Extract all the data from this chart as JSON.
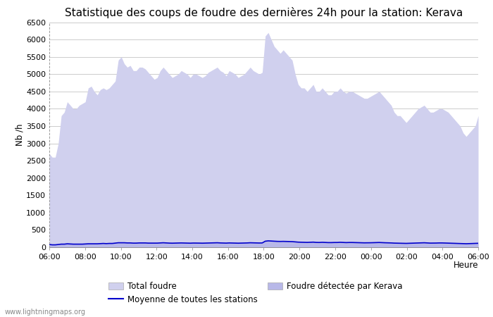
{
  "title": "Statistique des coups de foudre des dernières 24h pour la station: Kerava",
  "ylabel": "Nb /h",
  "xlabel": "Heure",
  "watermark": "www.lightningmaps.org",
  "xtick_labels": [
    "06:00",
    "08:00",
    "10:00",
    "12:00",
    "14:00",
    "16:00",
    "18:00",
    "20:00",
    "22:00",
    "00:00",
    "02:00",
    "04:00",
    "06:00"
  ],
  "ylim": [
    0,
    6500
  ],
  "ytick_values": [
    0,
    500,
    1000,
    1500,
    2000,
    2500,
    3000,
    3500,
    4000,
    4500,
    5000,
    5500,
    6000,
    6500
  ],
  "grid_color": "#cccccc",
  "fill_total_color": "#d0d0ee",
  "fill_kerava_color": "#b8b8e8",
  "line_color": "#0000cc",
  "total_foudre": [
    2700,
    2600,
    2600,
    3000,
    3800,
    3900,
    4200,
    4100,
    4000,
    4000,
    4100,
    4150,
    4200,
    4600,
    4650,
    4500,
    4400,
    4550,
    4600,
    4550,
    4600,
    4700,
    4800,
    5400,
    5500,
    5300,
    5200,
    5250,
    5100,
    5100,
    5200,
    5200,
    5150,
    5050,
    4950,
    4850,
    4900,
    5100,
    5200,
    5100,
    5000,
    4900,
    4950,
    5000,
    5100,
    5050,
    5000,
    4900,
    5000,
    5000,
    4950,
    4900,
    4950,
    5050,
    5100,
    5150,
    5200,
    5100,
    5050,
    4950,
    5100,
    5050,
    5000,
    4900,
    4950,
    5000,
    5100,
    5200,
    5100,
    5050,
    5000,
    5050,
    6100,
    6200,
    6000,
    5800,
    5700,
    5600,
    5700,
    5600,
    5500,
    5400,
    5000,
    4700,
    4600,
    4600,
    4500,
    4600,
    4700,
    4500,
    4500,
    4600,
    4500,
    4400,
    4400,
    4500,
    4500,
    4600,
    4500,
    4450,
    4500,
    4500,
    4450,
    4400,
    4350,
    4300,
    4300,
    4350,
    4400,
    4450,
    4500,
    4400,
    4300,
    4200,
    4100,
    3900,
    3800,
    3800,
    3700,
    3600,
    3700,
    3800,
    3900,
    4000,
    4050,
    4100,
    4000,
    3900,
    3900,
    3950,
    4000,
    4000,
    3950,
    3900,
    3800,
    3700,
    3600,
    3500,
    3300,
    3200,
    3300,
    3400,
    3500,
    3800
  ],
  "kerava_foudre": [
    80,
    70,
    70,
    80,
    90,
    90,
    100,
    95,
    90,
    90,
    90,
    90,
    95,
    100,
    100,
    100,
    100,
    105,
    110,
    105,
    110,
    110,
    120,
    130,
    130,
    130,
    125,
    125,
    120,
    120,
    125,
    125,
    125,
    120,
    120,
    118,
    120,
    125,
    130,
    125,
    120,
    118,
    120,
    122,
    125,
    123,
    120,
    118,
    122,
    122,
    120,
    118,
    120,
    123,
    125,
    128,
    130,
    125,
    123,
    120,
    125,
    123,
    120,
    118,
    120,
    122,
    125,
    130,
    128,
    125,
    123,
    125,
    175,
    185,
    180,
    175,
    170,
    168,
    170,
    168,
    165,
    163,
    155,
    148,
    145,
    143,
    140,
    143,
    148,
    140,
    138,
    143,
    138,
    135,
    135,
    138,
    138,
    143,
    138,
    135,
    138,
    138,
    135,
    133,
    130,
    128,
    128,
    130,
    133,
    135,
    138,
    133,
    130,
    128,
    125,
    120,
    118,
    118,
    115,
    112,
    115,
    118,
    120,
    125,
    128,
    130,
    125,
    120,
    120,
    122,
    125,
    125,
    122,
    120,
    115,
    113,
    110,
    108,
    105,
    102,
    105,
    108,
    110,
    115
  ],
  "moyenne_stations": [
    80,
    70,
    70,
    80,
    90,
    90,
    100,
    95,
    90,
    90,
    90,
    90,
    95,
    100,
    100,
    100,
    100,
    105,
    110,
    105,
    110,
    110,
    120,
    130,
    130,
    130,
    125,
    125,
    120,
    120,
    125,
    125,
    125,
    120,
    120,
    118,
    120,
    125,
    130,
    125,
    120,
    118,
    120,
    122,
    125,
    123,
    120,
    118,
    122,
    122,
    120,
    118,
    120,
    123,
    125,
    128,
    130,
    125,
    123,
    120,
    125,
    123,
    120,
    118,
    120,
    122,
    125,
    130,
    128,
    125,
    123,
    125,
    175,
    185,
    180,
    175,
    170,
    168,
    170,
    168,
    165,
    163,
    155,
    148,
    145,
    143,
    140,
    143,
    148,
    140,
    138,
    143,
    138,
    135,
    135,
    138,
    138,
    143,
    138,
    135,
    138,
    138,
    135,
    133,
    130,
    128,
    128,
    130,
    133,
    135,
    138,
    133,
    130,
    128,
    125,
    120,
    118,
    118,
    115,
    112,
    115,
    118,
    120,
    125,
    128,
    130,
    125,
    120,
    120,
    122,
    125,
    125,
    122,
    120,
    115,
    113,
    110,
    108,
    105,
    102,
    105,
    108,
    110,
    115
  ],
  "legend_total_label": "Total foudre",
  "legend_kerava_label": "Foudre détectée par Kerava",
  "legend_moyenne_label": "Moyenne de toutes les stations",
  "title_fontsize": 11,
  "label_fontsize": 8.5,
  "tick_fontsize": 8
}
